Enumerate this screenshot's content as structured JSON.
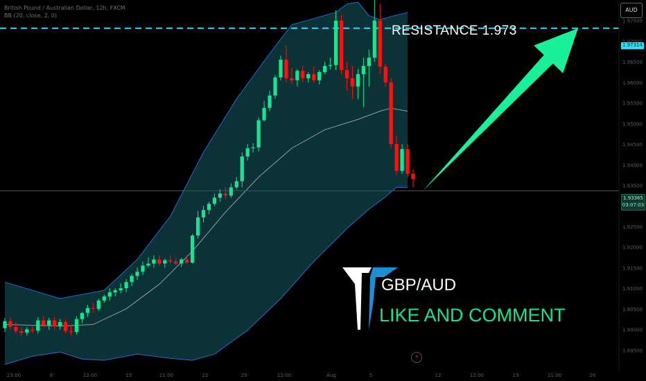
{
  "header": {
    "symbol_line": "British Pound / Australian Dollar, 12h, FXCM",
    "indicator_line": "BB (20, close, 2, 0)"
  },
  "currency_badge": "AUD",
  "annotations": {
    "resistance_label": "RESISTANCE   1.973",
    "pair": "GBP/AUD",
    "call_to_action": "LIKE AND COMMENT"
  },
  "price_tags": {
    "resistance": "1.97314",
    "last": "1.93365",
    "countdown": "03:07:03"
  },
  "colors": {
    "background": "#000000",
    "bull": "#19e38e",
    "bear": "#ff1010",
    "band_fill": "#0b3236",
    "band_line": "#2b66d6",
    "basis": "#9b9b9b",
    "resistance_line": "#26e0ff",
    "arrow": "#19f09a",
    "logo_white": "#ffffff",
    "logo_blue": "#1a8fd6"
  },
  "chart_data": {
    "type": "candlestick",
    "symbol": "British Pound / Australian Dollar",
    "timeframe": "12h",
    "source": "FXCM",
    "indicator": "BB (20, close, 2, 0)",
    "ylim": [
      1.89,
      1.98
    ],
    "y_ticks": [
      1.975,
      1.97,
      1.965,
      1.96,
      1.955,
      1.95,
      1.945,
      1.94,
      1.935,
      1.93,
      1.925,
      1.92,
      1.915,
      1.91,
      1.905,
      1.9,
      1.895
    ],
    "y_tick_labels": [
      "1.97500",
      "1.97000",
      "1.96500",
      "1.96000",
      "1.95500",
      "1.95000",
      "1.94500",
      "1.94000",
      "1.93500",
      "1.93000",
      "1.92500",
      "1.92000",
      "1.91500",
      "1.91000",
      "1.90500",
      "1.90000",
      "1.89500"
    ],
    "x_tick_labels": [
      "23:00",
      "8",
      "12:00",
      "15",
      "21:00",
      "22",
      "29",
      "12:00",
      "Aug",
      "5",
      "12",
      "12:00",
      "19",
      "21:00",
      "26"
    ],
    "resistance_level": 1.97314,
    "last_price": 1.93365,
    "candles": [
      [
        1.9003,
        1.9028,
        1.8994,
        1.902
      ],
      [
        1.902,
        1.903,
        1.9,
        1.9006
      ],
      [
        1.9006,
        1.9018,
        1.899,
        1.8996
      ],
      [
        1.8996,
        1.9005,
        1.8985,
        1.8992
      ],
      [
        1.8992,
        1.9006,
        1.8985,
        1.9
      ],
      [
        1.9,
        1.9008,
        1.899,
        1.8997
      ],
      [
        1.8997,
        1.903,
        1.899,
        1.9022
      ],
      [
        1.9022,
        1.9032,
        1.9005,
        1.901
      ],
      [
        1.901,
        1.9028,
        1.9,
        1.9022
      ],
      [
        1.9022,
        1.903,
        1.9,
        1.9008
      ],
      [
        1.9008,
        1.9025,
        1.9,
        1.9018
      ],
      [
        1.9018,
        1.9025,
        1.899,
        1.8996
      ],
      [
        1.8996,
        1.901,
        1.8985,
        1.8994
      ],
      [
        1.8994,
        1.9032,
        1.8988,
        1.9025
      ],
      [
        1.9025,
        1.9042,
        1.9015,
        1.904
      ],
      [
        1.904,
        1.906,
        1.903,
        1.9052
      ],
      [
        1.9052,
        1.9065,
        1.904,
        1.905
      ],
      [
        1.905,
        1.9075,
        1.9045,
        1.907
      ],
      [
        1.907,
        1.9085,
        1.9065,
        1.908
      ],
      [
        1.908,
        1.91,
        1.907,
        1.909
      ],
      [
        1.909,
        1.91,
        1.908,
        1.9095
      ],
      [
        1.9095,
        1.9112,
        1.9088,
        1.91
      ],
      [
        1.91,
        1.9122,
        1.909,
        1.9115
      ],
      [
        1.9115,
        1.9135,
        1.9105,
        1.913
      ],
      [
        1.913,
        1.915,
        1.912,
        1.914
      ],
      [
        1.914,
        1.9165,
        1.9132,
        1.9155
      ],
      [
        1.9155,
        1.9175,
        1.915,
        1.916
      ],
      [
        1.916,
        1.918,
        1.915,
        1.917
      ],
      [
        1.917,
        1.918,
        1.9155,
        1.916
      ],
      [
        1.916,
        1.9172,
        1.915,
        1.9168
      ],
      [
        1.9168,
        1.918,
        1.916,
        1.9165
      ],
      [
        1.9165,
        1.9175,
        1.9155,
        1.916
      ],
      [
        1.916,
        1.9174,
        1.9152,
        1.917
      ],
      [
        1.917,
        1.918,
        1.916,
        1.9162
      ],
      [
        1.9162,
        1.9232,
        1.916,
        1.9228
      ],
      [
        1.9228,
        1.9288,
        1.922,
        1.9272
      ],
      [
        1.9272,
        1.93,
        1.926,
        1.929
      ],
      [
        1.929,
        1.931,
        1.928,
        1.9305
      ],
      [
        1.9305,
        1.933,
        1.93,
        1.932
      ],
      [
        1.932,
        1.934,
        1.931,
        1.933
      ],
      [
        1.933,
        1.9345,
        1.9315,
        1.9325
      ],
      [
        1.9325,
        1.9355,
        1.932,
        1.9345
      ],
      [
        1.9345,
        1.937,
        1.934,
        1.936
      ],
      [
        1.936,
        1.943,
        1.9345,
        1.942
      ],
      [
        1.942,
        1.945,
        1.941,
        1.944
      ],
      [
        1.944,
        1.9452,
        1.943,
        1.9442
      ],
      [
        1.9442,
        1.9515,
        1.9432,
        1.9508
      ],
      [
        1.9508,
        1.9555,
        1.9505,
        1.9538
      ],
      [
        1.9538,
        1.958,
        1.953,
        1.9568
      ],
      [
        1.9568,
        1.9618,
        1.956,
        1.9612
      ],
      [
        1.9612,
        1.9665,
        1.9605,
        1.9655
      ],
      [
        1.9655,
        1.969,
        1.96,
        1.961
      ],
      [
        1.961,
        1.9635,
        1.9595,
        1.9605
      ],
      [
        1.9605,
        1.9632,
        1.959,
        1.9628
      ],
      [
        1.9628,
        1.964,
        1.96,
        1.961
      ],
      [
        1.961,
        1.9625,
        1.96,
        1.962
      ],
      [
        1.962,
        1.9638,
        1.9598,
        1.9605
      ],
      [
        1.9605,
        1.963,
        1.9595,
        1.9625
      ],
      [
        1.9625,
        1.965,
        1.962,
        1.964
      ],
      [
        1.964,
        1.966,
        1.9632,
        1.9642
      ],
      [
        1.9642,
        1.9775,
        1.963,
        1.975
      ],
      [
        1.975,
        1.9765,
        1.962,
        1.963
      ],
      [
        1.963,
        1.965,
        1.958,
        1.961
      ],
      [
        1.961,
        1.964,
        1.956,
        1.959
      ],
      [
        1.959,
        1.9632,
        1.956,
        1.962
      ],
      [
        1.962,
        1.966,
        1.954,
        1.964
      ],
      [
        1.964,
        1.968,
        1.959,
        1.966
      ],
      [
        1.966,
        1.9835,
        1.965,
        1.975
      ],
      [
        1.975,
        1.979,
        1.962,
        1.9638
      ],
      [
        1.9638,
        1.9645,
        1.959,
        1.96
      ],
      [
        1.96,
        1.961,
        1.944,
        1.945
      ],
      [
        1.945,
        1.947,
        1.9375,
        1.9385
      ],
      [
        1.9385,
        1.945,
        1.9378,
        1.9438
      ],
      [
        1.9438,
        1.945,
        1.937,
        1.9378
      ],
      [
        1.9378,
        1.939,
        1.9345,
        1.9365
      ]
    ],
    "bb_upper": [
      [
        0,
        1.9115
      ],
      [
        10,
        1.9075
      ],
      [
        18,
        1.9095
      ],
      [
        24,
        1.917
      ],
      [
        30,
        1.9275
      ],
      [
        36,
        1.943
      ],
      [
        42,
        1.956
      ],
      [
        48,
        1.967
      ],
      [
        52,
        1.974
      ],
      [
        56,
        1.9755
      ],
      [
        60,
        1.977
      ],
      [
        62,
        1.979
      ],
      [
        64,
        1.9795
      ],
      [
        66,
        1.9762
      ],
      [
        68,
        1.9752
      ],
      [
        70,
        1.976
      ],
      [
        73,
        1.977
      ]
    ],
    "bb_basis": [
      [
        0,
        1.9012
      ],
      [
        10,
        1.9008
      ],
      [
        16,
        1.9012
      ],
      [
        22,
        1.905
      ],
      [
        28,
        1.911
      ],
      [
        34,
        1.919
      ],
      [
        40,
        1.9285
      ],
      [
        46,
        1.937
      ],
      [
        52,
        1.944
      ],
      [
        58,
        1.9485
      ],
      [
        64,
        1.951
      ],
      [
        68,
        1.953
      ],
      [
        70,
        1.9537
      ],
      [
        73,
        1.953
      ]
    ],
    "bb_lower": [
      [
        0,
        1.8915
      ],
      [
        5,
        1.8935
      ],
      [
        10,
        1.8945
      ],
      [
        14,
        1.8928
      ],
      [
        18,
        1.8925
      ],
      [
        24,
        1.894
      ],
      [
        30,
        1.893
      ],
      [
        34,
        1.8925
      ],
      [
        38,
        1.894
      ],
      [
        44,
        1.8998
      ],
      [
        50,
        1.9075
      ],
      [
        56,
        1.9165
      ],
      [
        62,
        1.9245
      ],
      [
        66,
        1.9292
      ],
      [
        69,
        1.9322
      ],
      [
        71,
        1.9345
      ],
      [
        73,
        1.9345
      ]
    ]
  }
}
